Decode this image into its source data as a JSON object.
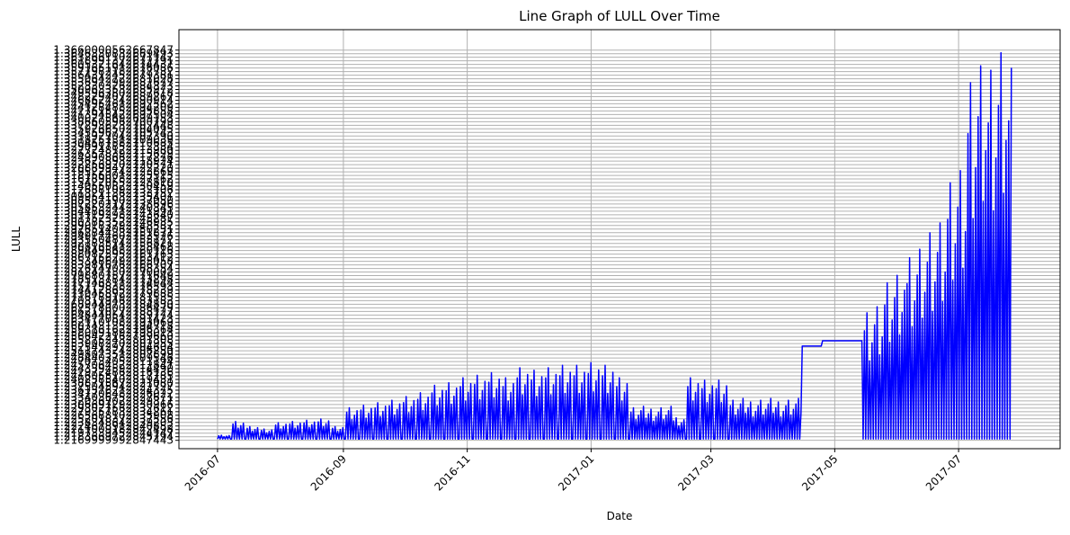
{
  "chart_data": {
    "type": "line",
    "title": "Line Graph of LULL Over Time",
    "xlabel": "Date",
    "ylabel": "LULL",
    "x_tick_labels": [
      "2016-07",
      "2016-09",
      "2016-11",
      "2017-01",
      "2017-03",
      "2017-05",
      "2017-07"
    ],
    "x_tick_dates": [
      "2016-07-01",
      "2016-09-01",
      "2016-11-01",
      "2017-01-01",
      "2017-03-01",
      "2017-05-01",
      "2017-07-01"
    ],
    "xlim": [
      "2016-06-12",
      "2017-08-20"
    ],
    "y_tick_bottom_label": "1.2169999992847443",
    "y_tick_top_label": "1.3660000562667847",
    "y_tick_count": 110,
    "ylim": [
      1.2138,
      1.3738
    ],
    "grid": true,
    "line_color": "#0000ff",
    "series": [
      {
        "x": [
          "2016-07-01",
          "2016-07-08",
          "2016-07-15",
          "2016-07-22",
          "2016-07-29",
          "2016-08-05",
          "2016-08-12",
          "2016-08-19",
          "2016-08-26",
          "2016-09-02",
          "2016-09-09",
          "2016-09-16",
          "2016-09-23",
          "2016-09-30",
          "2016-10-07",
          "2016-10-14",
          "2016-10-21",
          "2016-10-28",
          "2016-11-04",
          "2016-11-11",
          "2016-11-18",
          "2016-11-25",
          "2016-12-02",
          "2016-12-09",
          "2016-12-16",
          "2016-12-23",
          "2016-12-30",
          "2017-01-06",
          "2017-01-13",
          "2017-01-20",
          "2017-02-10",
          "2017-02-17",
          "2017-02-24",
          "2017-03-03",
          "2017-03-10",
          "2017-04-15",
          "2017-04-25",
          "2017-05-15",
          "2017-05-25",
          "2017-06-05",
          "2017-06-15",
          "2017-06-25",
          "2017-07-05",
          "2017-07-15",
          "2017-07-25"
        ],
        "max": [
          1.219,
          1.2245,
          1.2225,
          1.2215,
          1.224,
          1.2245,
          1.225,
          1.2255,
          1.2225,
          1.23,
          1.231,
          1.232,
          1.233,
          1.2345,
          1.236,
          1.239,
          1.24,
          1.242,
          1.243,
          1.244,
          1.242,
          1.246,
          1.245,
          1.246,
          1.247,
          1.247,
          1.248,
          1.247,
          1.242,
          1.23,
          1.226,
          1.242,
          1.241,
          1.241,
          1.233,
          1.253,
          1.255,
          1.268,
          1.28,
          1.29,
          1.3,
          1.32,
          1.36,
          1.365,
          1.366
        ],
        "min": [
          1.2175,
          1.2175,
          1.2175,
          1.2175,
          1.2175,
          1.2175,
          1.2175,
          1.2175,
          1.2175,
          1.2175,
          1.2175,
          1.2175,
          1.2175,
          1.2175,
          1.2175,
          1.2175,
          1.2175,
          1.2175,
          1.2175,
          1.2175,
          1.2175,
          1.2175,
          1.2175,
          1.2175,
          1.2175,
          1.2175,
          1.2175,
          1.2175,
          1.2175,
          1.2175,
          1.2175,
          1.2175,
          1.2175,
          1.2175,
          1.2175,
          1.253,
          1.255,
          1.2175,
          1.2175,
          1.2175,
          1.2175,
          1.2175,
          1.2175,
          1.2175,
          1.2175
        ]
      }
    ]
  }
}
